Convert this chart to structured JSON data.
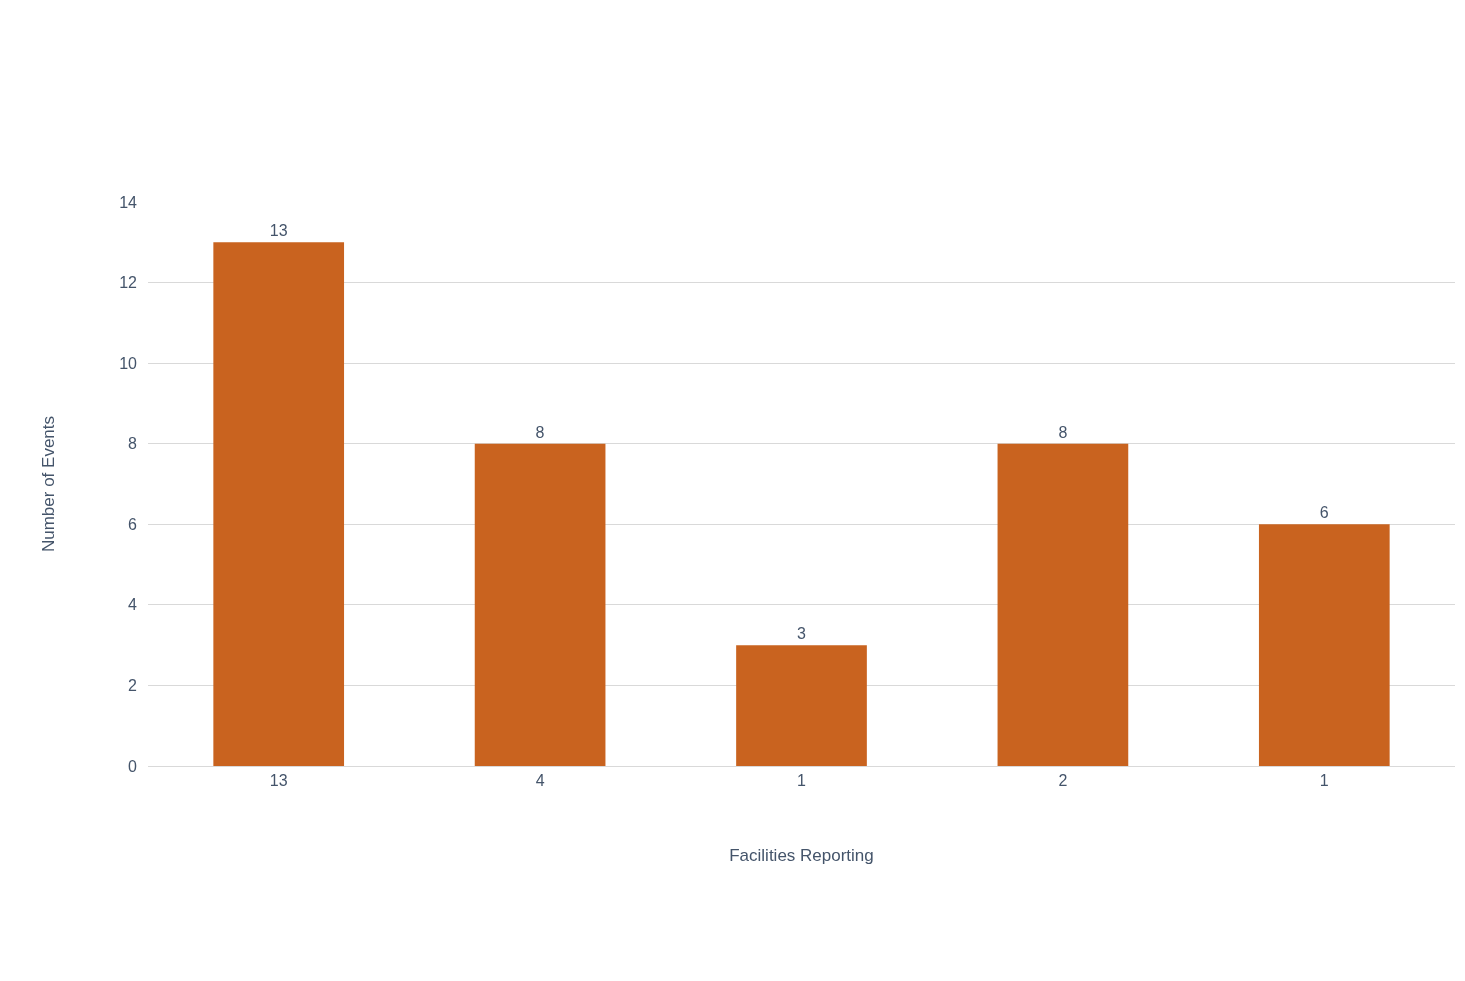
{
  "chart_data": {
    "type": "bar",
    "xlabel": "Facilities Reporting",
    "ylabel": "Number of Events",
    "categories": [
      "13",
      "4",
      "1",
      "2",
      "1"
    ],
    "values": [
      13,
      8,
      3,
      8,
      6
    ],
    "color": "#c9631f",
    "ylim": [
      0,
      14
    ],
    "yticks": [
      0,
      2,
      4,
      6,
      8,
      10,
      12,
      14
    ],
    "grid": "y",
    "legend": false,
    "data_labels": true
  }
}
